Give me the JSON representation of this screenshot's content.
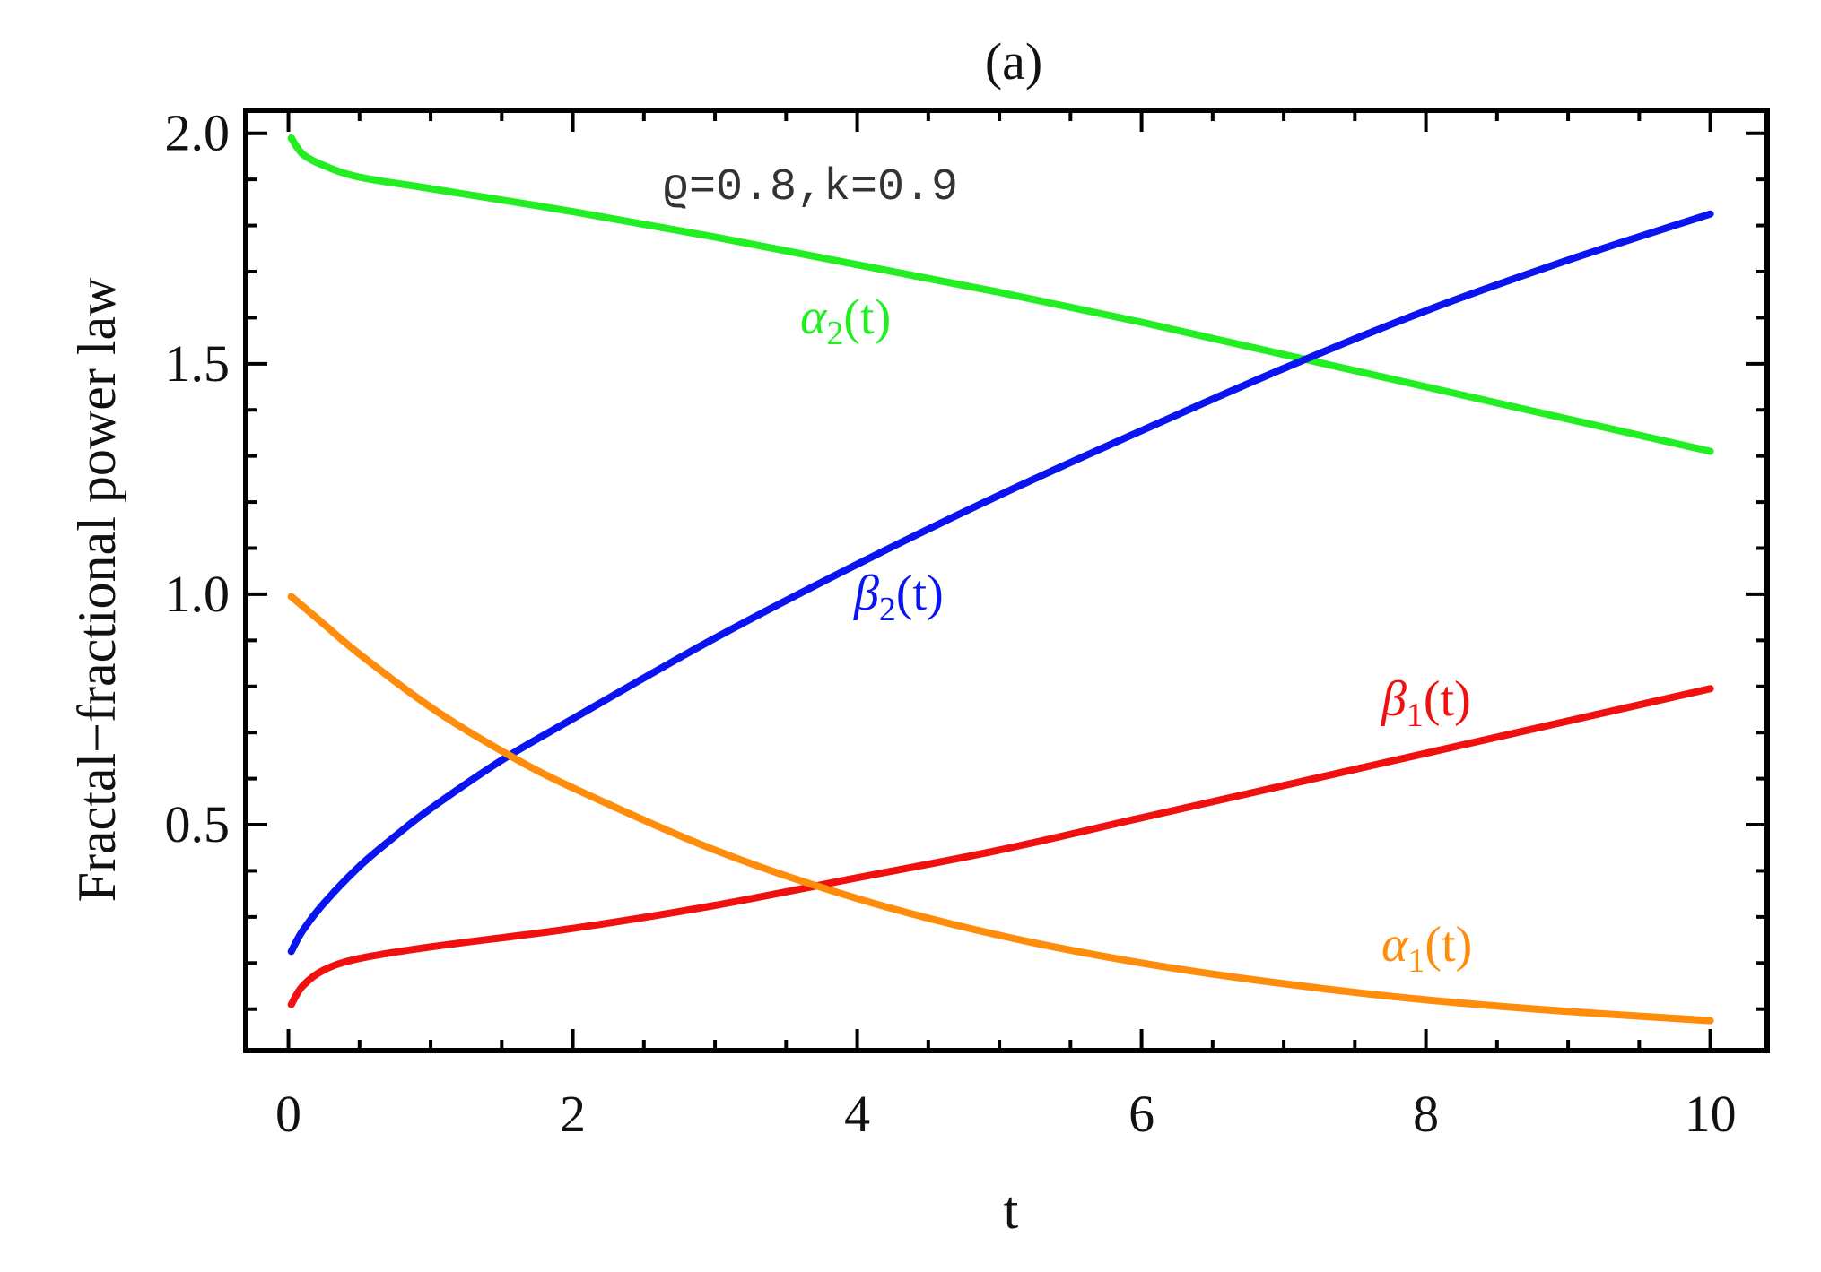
{
  "chart_data": {
    "type": "line",
    "title": "(a)",
    "xlabel": "t",
    "ylabel": "Fractal−fractional power law",
    "xlim": [
      -0.3,
      10.4
    ],
    "ylim": [
      0.01,
      2.05
    ],
    "xticks": [
      0,
      2,
      4,
      6,
      8,
      10
    ],
    "xtick_labels": [
      "0",
      "2",
      "4",
      "6",
      "8",
      "10"
    ],
    "yticks": [
      0.5,
      1.0,
      1.5,
      2.0
    ],
    "ytick_labels": [
      "0.5",
      "1.0",
      "1.5",
      "2.0"
    ],
    "grid": false,
    "legend": "none",
    "annotation": "ϱ=0.8,k=0.9",
    "series": [
      {
        "name": "α2(t)",
        "label_main": "α",
        "label_sub": "2",
        "label_suffix": "(t)",
        "color": "#22ee22",
        "x": [
          0.02,
          0.1,
          0.25,
          0.5,
          1,
          2,
          3,
          4,
          5,
          6,
          7,
          8,
          9,
          10
        ],
        "y": [
          1.99,
          1.955,
          1.93,
          1.905,
          1.88,
          1.83,
          1.775,
          1.715,
          1.655,
          1.59,
          1.52,
          1.45,
          1.38,
          1.31
        ]
      },
      {
        "name": "β2(t)",
        "label_main": "β",
        "label_sub": "2",
        "label_suffix": "(t)",
        "color": "#0a14f0",
        "x": [
          0.02,
          0.1,
          0.25,
          0.5,
          0.75,
          1,
          1.5,
          2,
          3,
          4,
          5,
          6,
          7,
          8,
          9,
          10
        ],
        "y": [
          0.225,
          0.27,
          0.33,
          0.41,
          0.475,
          0.535,
          0.64,
          0.73,
          0.905,
          1.065,
          1.215,
          1.355,
          1.49,
          1.615,
          1.725,
          1.825
        ]
      },
      {
        "name": "β1(t)",
        "label_main": "β",
        "label_sub": "1",
        "label_suffix": "(t)",
        "color": "#f01010",
        "x": [
          0.02,
          0.1,
          0.25,
          0.5,
          1,
          2,
          3,
          4,
          5,
          6,
          7,
          8,
          9,
          10
        ],
        "y": [
          0.11,
          0.15,
          0.185,
          0.21,
          0.235,
          0.275,
          0.325,
          0.385,
          0.445,
          0.515,
          0.585,
          0.655,
          0.725,
          0.795
        ]
      },
      {
        "name": "α1(t)",
        "label_main": "α",
        "label_sub": "1",
        "label_suffix": "(t)",
        "color": "#ff8c0a",
        "x": [
          0.02,
          0.25,
          0.5,
          1,
          1.5,
          2,
          3,
          4,
          5,
          6,
          7,
          8,
          9,
          10
        ],
        "y": [
          0.995,
          0.935,
          0.87,
          0.755,
          0.66,
          0.58,
          0.445,
          0.34,
          0.26,
          0.2,
          0.155,
          0.12,
          0.095,
          0.075
        ]
      }
    ]
  }
}
